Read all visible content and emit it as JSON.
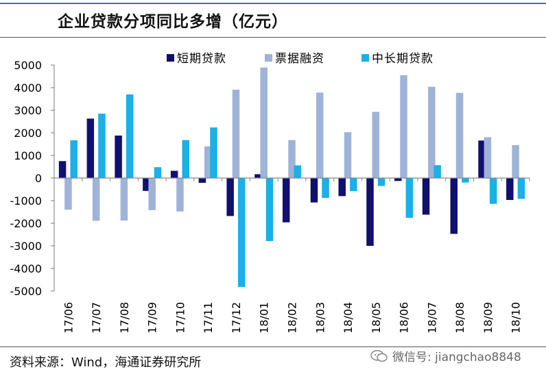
{
  "header": {
    "title": "企业贷款分项同比多增（亿元）"
  },
  "footer": {
    "source": "资料来源：Wind，海通证券研究所",
    "watermark": "微信号: jiangchao8848"
  },
  "chart_data": {
    "type": "bar",
    "title": "企业贷款分项同比多增（亿元）",
    "xlabel": "",
    "ylabel": "",
    "ylim": [
      -5000,
      5000
    ],
    "yticks": [
      5000,
      4000,
      3000,
      2000,
      1000,
      0,
      -1000,
      -2000,
      -3000,
      -4000,
      -5000
    ],
    "grid": false,
    "legend_position": "top",
    "categories": [
      "17/06",
      "17/07",
      "17/08",
      "17/09",
      "17/10",
      "17/11",
      "17/12",
      "18/01",
      "18/02",
      "18/03",
      "18/04",
      "18/05",
      "18/06",
      "18/07",
      "18/08",
      "18/09",
      "18/10"
    ],
    "series": [
      {
        "name": "短期贷款",
        "color": "#10106e",
        "values": [
          750,
          2630,
          1880,
          -570,
          320,
          -210,
          -1680,
          170,
          -1960,
          -1080,
          -800,
          -3000,
          -130,
          -1620,
          -2470,
          1660,
          -970
        ]
      },
      {
        "name": "票据融资",
        "color": "#9fb3d8",
        "values": [
          -1400,
          -1890,
          -1880,
          -1420,
          -1480,
          1400,
          3910,
          4890,
          1680,
          3780,
          2030,
          2930,
          4550,
          4040,
          3770,
          1810,
          1460
        ]
      },
      {
        "name": "中长期贷款",
        "color": "#1ab0e8",
        "values": [
          1670,
          2850,
          3700,
          480,
          1680,
          2240,
          -4820,
          -2790,
          560,
          -880,
          -580,
          -350,
          -1760,
          570,
          -200,
          -1140,
          -920
        ]
      }
    ]
  }
}
